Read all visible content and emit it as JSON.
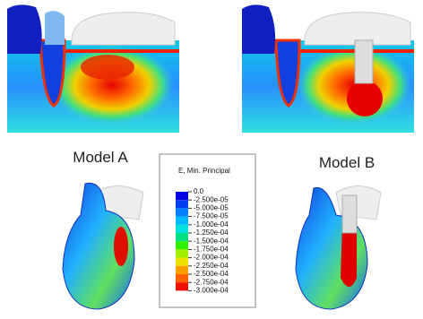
{
  "labels": {
    "model_a": "Model A",
    "model_b": "Model B"
  },
  "legend": {
    "title": "E, Min. Principal",
    "entries": [
      "0.0",
      "-2.500e-05",
      "-5.000e-05",
      "-7.500e-05",
      "-1.000e-04",
      "-1.250e-04",
      "-1.500e-04",
      "-1.750e-04",
      "-2.000e-04",
      "-2.250e-04",
      "-2.500e-04",
      "-2.750e-04",
      "-3.000e-04"
    ]
  }
}
